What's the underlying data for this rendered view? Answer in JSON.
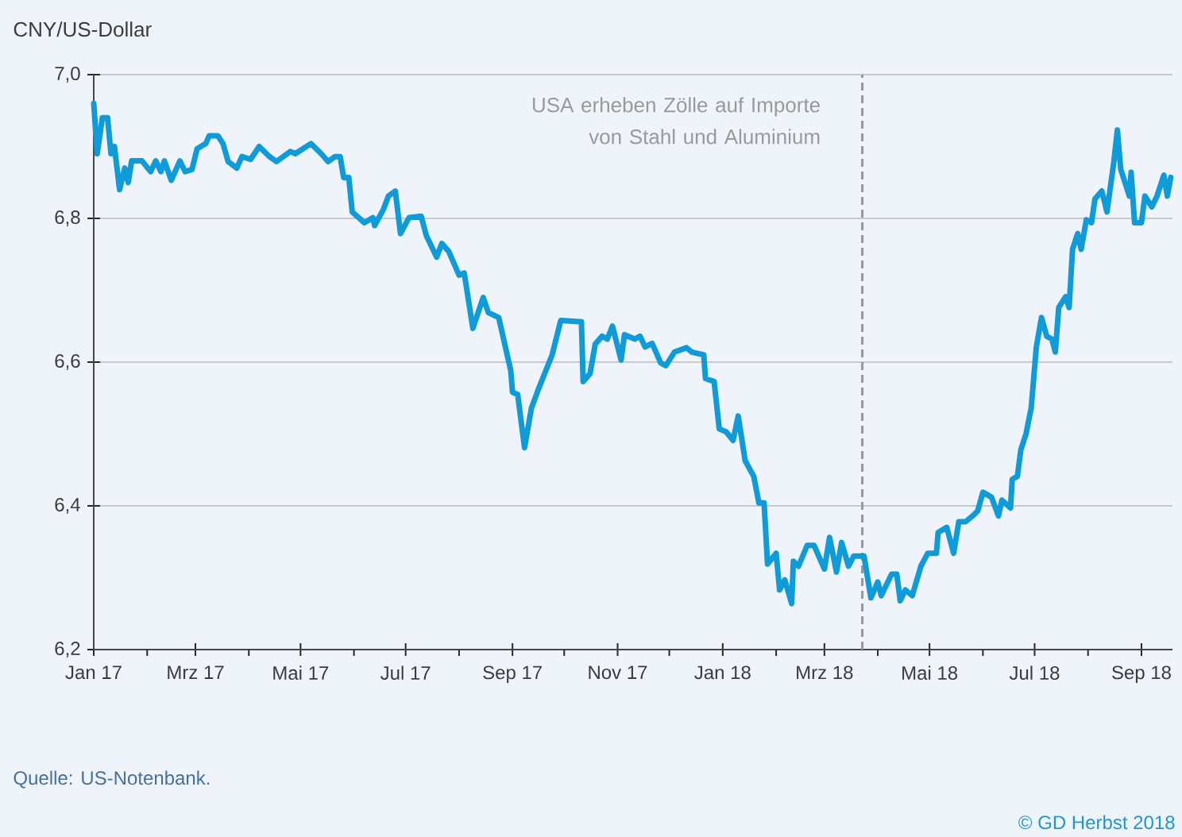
{
  "chart_data": {
    "type": "line",
    "ylabel": "CNY/US-Dollar",
    "color": "#0f9ad8",
    "x": [
      "2017-01-01",
      "2017-01-03",
      "2017-01-06",
      "2017-01-09",
      "2017-01-11",
      "2017-01-13",
      "2017-01-16",
      "2017-01-19",
      "2017-01-21",
      "2017-01-23",
      "2017-01-29",
      "2017-02-03",
      "2017-02-06",
      "2017-02-09",
      "2017-02-11",
      "2017-02-15",
      "2017-02-20",
      "2017-02-23",
      "2017-02-27",
      "2017-03-02",
      "2017-03-07",
      "2017-03-09",
      "2017-03-14",
      "2017-03-17",
      "2017-03-20",
      "2017-03-25",
      "2017-03-28",
      "2017-04-02",
      "2017-04-07",
      "2017-04-13",
      "2017-04-17",
      "2017-04-25",
      "2017-04-28",
      "2017-05-07",
      "2017-05-13",
      "2017-05-17",
      "2017-05-21",
      "2017-05-24",
      "2017-05-26",
      "2017-05-29",
      "2017-05-31",
      "2017-06-07",
      "2017-06-12",
      "2017-06-13",
      "2017-06-18",
      "2017-06-21",
      "2017-06-25",
      "2017-06-28",
      "2017-07-03",
      "2017-07-10",
      "2017-07-13",
      "2017-07-19",
      "2017-07-22",
      "2017-07-26",
      "2017-08-01",
      "2017-08-04",
      "2017-08-09",
      "2017-08-15",
      "2017-08-18",
      "2017-08-24",
      "2017-08-31",
      "2017-09-01",
      "2017-09-04",
      "2017-09-08",
      "2017-09-12",
      "2017-09-16",
      "2017-09-19",
      "2017-09-24",
      "2017-09-29",
      "2017-10-11",
      "2017-10-12",
      "2017-10-16",
      "2017-10-19",
      "2017-10-23",
      "2017-10-26",
      "2017-10-29",
      "2017-11-03",
      "2017-11-05",
      "2017-11-11",
      "2017-11-14",
      "2017-11-17",
      "2017-11-21",
      "2017-11-26",
      "2017-11-29",
      "2017-12-04",
      "2017-12-11",
      "2017-12-14",
      "2017-12-21",
      "2017-12-22",
      "2017-12-27",
      "2017-12-30",
      "2018-01-03",
      "2018-01-07",
      "2018-01-10",
      "2018-01-14",
      "2018-01-19",
      "2018-01-22",
      "2018-01-25",
      "2018-01-27",
      "2018-02-01",
      "2018-02-03",
      "2018-02-06",
      "2018-02-10",
      "2018-02-11",
      "2018-02-14",
      "2018-02-19",
      "2018-02-23",
      "2018-03-01",
      "2018-03-04",
      "2018-03-08",
      "2018-03-11",
      "2018-03-15",
      "2018-03-18",
      "2018-03-24",
      "2018-03-28",
      "2018-04-01",
      "2018-04-03",
      "2018-04-09",
      "2018-04-12",
      "2018-04-14",
      "2018-04-17",
      "2018-04-21",
      "2018-04-26",
      "2018-04-30",
      "2018-05-05",
      "2018-05-06",
      "2018-05-11",
      "2018-05-15",
      "2018-05-18",
      "2018-05-22",
      "2018-05-26",
      "2018-05-29",
      "2018-06-01",
      "2018-06-06",
      "2018-06-10",
      "2018-06-12",
      "2018-06-17",
      "2018-06-18",
      "2018-06-21",
      "2018-06-23",
      "2018-06-26",
      "2018-06-29",
      "2018-07-02",
      "2018-07-05",
      "2018-07-08",
      "2018-07-11",
      "2018-07-13",
      "2018-07-15",
      "2018-07-19",
      "2018-07-21",
      "2018-07-23",
      "2018-07-26",
      "2018-07-28",
      "2018-07-31",
      "2018-08-03",
      "2018-08-05",
      "2018-08-09",
      "2018-08-12",
      "2018-08-16",
      "2018-08-18",
      "2018-08-20",
      "2018-08-25",
      "2018-08-26",
      "2018-08-28",
      "2018-09-01",
      "2018-09-03",
      "2018-09-07",
      "2018-09-10",
      "2018-09-14",
      "2018-09-16",
      "2018-09-18"
    ],
    "values": [
      6.96,
      6.89,
      6.94,
      6.94,
      6.89,
      6.9,
      6.84,
      6.87,
      6.85,
      6.88,
      6.88,
      6.865,
      6.88,
      6.865,
      6.88,
      6.853,
      6.88,
      6.865,
      6.868,
      6.897,
      6.904,
      6.915,
      6.915,
      6.904,
      6.879,
      6.87,
      6.886,
      6.882,
      6.9,
      6.886,
      6.879,
      6.893,
      6.89,
      6.904,
      6.89,
      6.879,
      6.886,
      6.886,
      6.857,
      6.857,
      6.809,
      6.794,
      6.801,
      6.79,
      6.812,
      6.831,
      6.838,
      6.779,
      6.801,
      6.803,
      6.776,
      6.746,
      6.765,
      6.754,
      6.721,
      6.724,
      6.647,
      6.69,
      6.669,
      6.662,
      6.588,
      6.558,
      6.555,
      6.481,
      6.536,
      6.562,
      6.58,
      6.61,
      6.658,
      6.656,
      6.573,
      6.584,
      6.625,
      6.636,
      6.632,
      6.65,
      6.603,
      6.638,
      6.632,
      6.636,
      6.621,
      6.626,
      6.599,
      6.595,
      6.614,
      6.62,
      6.614,
      6.61,
      6.577,
      6.573,
      6.507,
      6.503,
      6.491,
      6.525,
      6.463,
      6.441,
      6.404,
      6.404,
      6.319,
      6.334,
      6.283,
      6.297,
      6.264,
      6.323,
      6.316,
      6.345,
      6.345,
      6.312,
      6.356,
      6.308,
      6.349,
      6.316,
      6.33,
      6.33,
      6.272,
      6.294,
      6.275,
      6.305,
      6.305,
      6.268,
      6.283,
      6.275,
      6.316,
      6.334,
      6.334,
      6.363,
      6.37,
      6.334,
      6.378,
      6.378,
      6.386,
      6.393,
      6.419,
      6.412,
      6.386,
      6.408,
      6.397,
      6.437,
      6.441,
      6.478,
      6.5,
      6.536,
      6.621,
      6.662,
      6.636,
      6.632,
      6.614,
      6.676,
      6.691,
      6.676,
      6.757,
      6.779,
      6.757,
      6.798,
      6.794,
      6.827,
      6.838,
      6.809,
      6.879,
      6.923,
      6.868,
      6.831,
      6.864,
      6.794,
      6.794,
      6.831,
      6.816,
      6.831,
      6.86,
      6.831,
      6.857
    ],
    "xlim": [
      "2017-01-01",
      "2018-09-19"
    ],
    "xticks": [
      {
        "value": "2017-01-01",
        "label": "Jan 17"
      },
      {
        "value": "2017-02-01",
        "label": null
      },
      {
        "value": "2017-03-01",
        "label": "Mrz 17"
      },
      {
        "value": "2017-04-01",
        "label": null
      },
      {
        "value": "2017-05-01",
        "label": "Mai 17"
      },
      {
        "value": "2017-06-01",
        "label": null
      },
      {
        "value": "2017-07-01",
        "label": "Jul 17"
      },
      {
        "value": "2017-08-01",
        "label": null
      },
      {
        "value": "2017-09-01",
        "label": "Sep 17"
      },
      {
        "value": "2017-10-01",
        "label": null
      },
      {
        "value": "2017-11-01",
        "label": "Nov 17"
      },
      {
        "value": "2017-12-01",
        "label": null
      },
      {
        "value": "2018-01-01",
        "label": "Jan 18"
      },
      {
        "value": "2018-02-01",
        "label": null
      },
      {
        "value": "2018-03-01",
        "label": "Mrz 18"
      },
      {
        "value": "2018-04-01",
        "label": null
      },
      {
        "value": "2018-05-01",
        "label": "Mai 18"
      },
      {
        "value": "2018-06-01",
        "label": null
      },
      {
        "value": "2018-07-01",
        "label": "Jul 18"
      },
      {
        "value": "2018-08-01",
        "label": null
      },
      {
        "value": "2018-09-01",
        "label": "Sep 18"
      }
    ],
    "ylim": [
      6.2,
      7.0
    ],
    "yticks": [
      {
        "value": 6.2,
        "label": "6,2"
      },
      {
        "value": 6.4,
        "label": "6,4"
      },
      {
        "value": 6.6,
        "label": "6,6"
      },
      {
        "value": 6.8,
        "label": "6,8"
      },
      {
        "value": 7.0,
        "label": "7,0"
      }
    ],
    "grid": "y",
    "ref_lines": [
      {
        "axis": "x",
        "value": "2018-03-23",
        "label": "USA erheben Zölle auf Importe von Stahl und Aluminium",
        "color": "#999999",
        "line_style": "dashed"
      }
    ],
    "annotations": [
      "Quelle: US-Notenbank.",
      "© GD Herbst 2018"
    ]
  }
}
